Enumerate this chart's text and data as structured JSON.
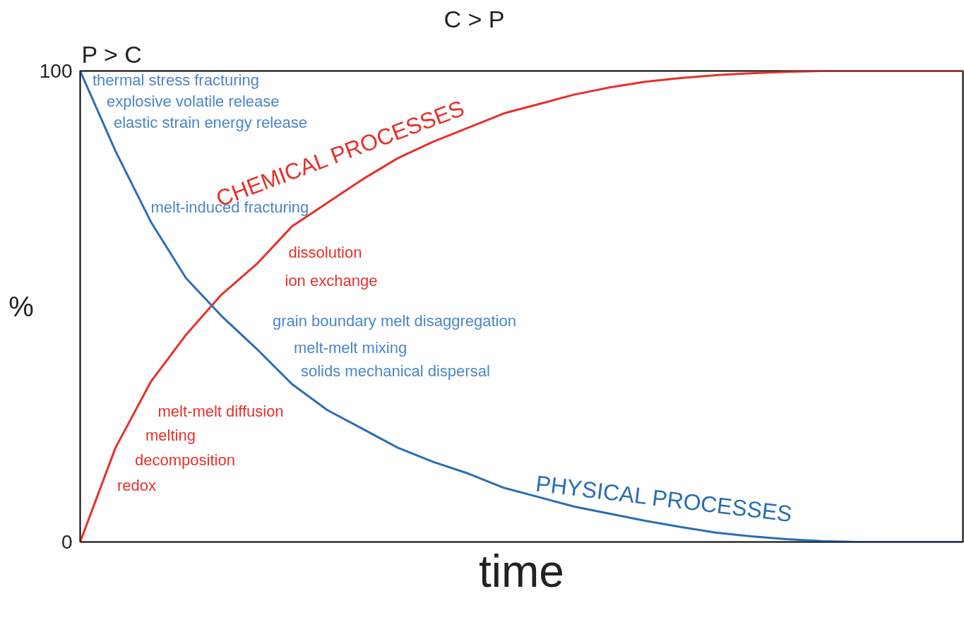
{
  "chart_data": {
    "type": "line",
    "xlabel": "time",
    "ylabel": "%",
    "categories": [
      null,
      null,
      null,
      null,
      null,
      null,
      null,
      null,
      null,
      null,
      null,
      null,
      null,
      null,
      null,
      null,
      null,
      null,
      null,
      null,
      null,
      null,
      null,
      null,
      null,
      null
    ],
    "series": [
      {
        "name": "CHEMICAL PROCESSES",
        "color": "#e8302a",
        "values": [
          0,
          20,
          34,
          44,
          52.5,
          59,
          67,
          72,
          77,
          81.5,
          85,
          88,
          91,
          93,
          95,
          96.5,
          97.7,
          98.5,
          99.1,
          99.5,
          99.8,
          100,
          100,
          100,
          100,
          100
        ]
      },
      {
        "name": "PHYSICAL PROCESSES",
        "color": "#2a6db5",
        "values": [
          100,
          83,
          68,
          56,
          48,
          41,
          33.5,
          28,
          24,
          20,
          17,
          14.5,
          11.5,
          9.5,
          7.5,
          6,
          4.5,
          3.2,
          2,
          1.2,
          0.6,
          0.2,
          0,
          0,
          0,
          0
        ]
      }
    ],
    "ylim": [
      0,
      100
    ],
    "yticks": [
      0,
      100
    ],
    "marker": "none",
    "line_style": "solid",
    "annotations": [
      "P > C",
      "C > P",
      "thermal stress fracturing",
      "explosive volatile release",
      "elastic strain energy release",
      "melt-induced fracturing",
      "dissolution",
      "ion exchange",
      "grain boundary melt disaggregation",
      "melt-melt mixing",
      "solids mechanical dispersal",
      "melt-melt diffusion",
      "melting",
      "decomposition",
      "redox"
    ]
  }
}
